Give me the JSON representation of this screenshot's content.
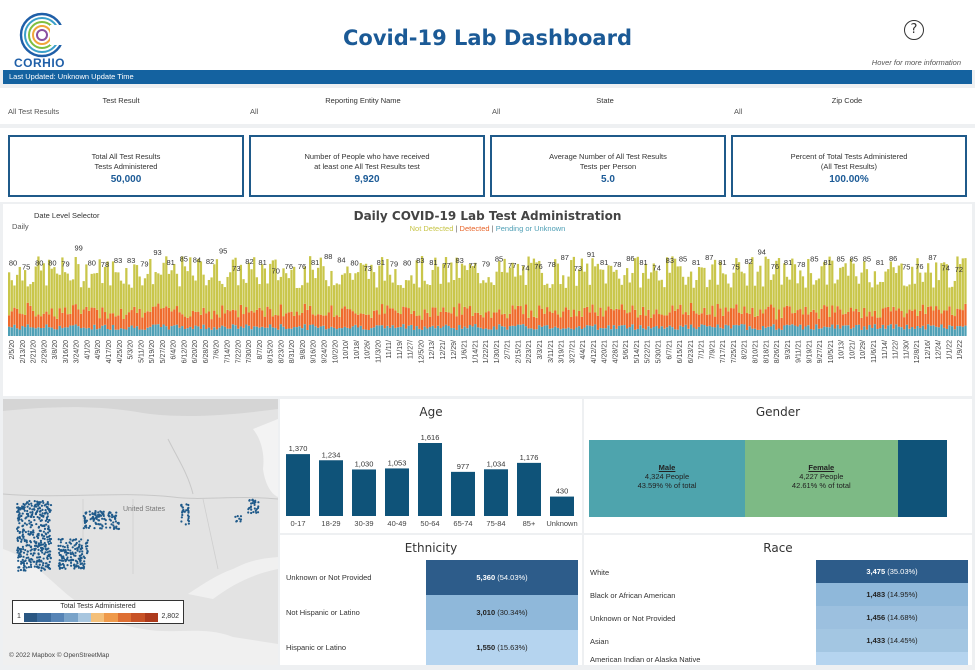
{
  "header": {
    "logo_text": "CORHIO",
    "title": "Covid-19 Lab Dashboard",
    "help_symbol": "?",
    "hover_hint": "Hover for more information",
    "last_updated": "Last Updated: Unknown Update Time"
  },
  "filters": [
    {
      "label": "Test Result",
      "value": "All Test Results"
    },
    {
      "label": "Reporting Entity Name",
      "value": "All"
    },
    {
      "label": "State",
      "value": "All"
    },
    {
      "label": "Zip Code",
      "value": "All"
    }
  ],
  "kpis": [
    {
      "line1": "Total All Test Results",
      "line2": "Tests Administered",
      "value": "50,000"
    },
    {
      "line1": "Number of People who have received",
      "line2": "at least one All Test Results test",
      "value": "9,920"
    },
    {
      "line1": "Average Number of All Test Results",
      "line2": "Tests per Person",
      "value": "5.0"
    },
    {
      "line1": "Percent of Total Tests Administered",
      "line2": "(All Test Results)",
      "value": "100.00%"
    }
  ],
  "timeline": {
    "date_selector_label": "Date Level Selector",
    "date_selector_value": "Daily",
    "title": "Daily COVID-19 Lab Test Administration",
    "legend": {
      "not_detected": "Not Detected",
      "detected": "Detected",
      "pending": "Pending or Unknown",
      "separator": "|"
    },
    "colors": {
      "not_detected": "#c9c64a",
      "detected": "#ef6a2b",
      "pending": "#4e9fb5"
    }
  },
  "chart_data": [
    {
      "type": "bar",
      "title": "Daily COVID-19 Lab Test Administration",
      "series": [
        {
          "name": "Not Detected"
        },
        {
          "name": "Detected"
        },
        {
          "name": "Pending or Unknown"
        }
      ],
      "x_tick_labels": [
        "2/5/20",
        "2/13/20",
        "2/21/20",
        "2/29/20",
        "3/8/20",
        "3/16/20",
        "3/24/20",
        "4/1/20",
        "4/9/20",
        "4/17/20",
        "4/25/20",
        "5/3/20",
        "5/11/20",
        "5/19/20",
        "5/27/20",
        "6/4/20",
        "6/12/20",
        "6/20/20",
        "6/28/20",
        "7/6/20",
        "7/14/20",
        "7/22/20",
        "7/30/20",
        "8/7/20",
        "8/15/20",
        "8/23/20",
        "8/31/20",
        "9/8/20",
        "9/16/20",
        "9/24/20",
        "10/2/20",
        "10/10/",
        "10/18/",
        "10/26/",
        "11/3/20",
        "11/11/",
        "11/19/",
        "11/27/",
        "12/5/20",
        "12/13/",
        "12/21/",
        "12/29/",
        "1/6/21",
        "1/14/21",
        "1/22/21",
        "1/30/21",
        "2/7/21",
        "2/15/21",
        "2/23/21",
        "3/3/21",
        "3/11/21",
        "3/19/21",
        "3/27/21",
        "4/4/21",
        "4/12/21",
        "4/20/21",
        "4/28/21",
        "5/6/21",
        "5/14/21",
        "5/22/21",
        "5/30/21",
        "6/7/21",
        "6/15/21",
        "6/23/21",
        "7/1/21",
        "7/9/21",
        "7/17/21",
        "7/25/21",
        "8/2/21",
        "8/10/21",
        "8/18/21",
        "8/26/21",
        "9/3/21",
        "9/11/21",
        "9/19/21",
        "9/27/21",
        "10/5/21",
        "10/13/",
        "10/21/",
        "10/29/",
        "11/6/21",
        "11/14/",
        "11/22/",
        "11/30/",
        "12/8/21",
        "12/16/",
        "12/24/",
        "1/1/22",
        "1/9/22"
      ],
      "data_labels": [
        80,
        75,
        80,
        80,
        79,
        99,
        80,
        78,
        83,
        83,
        79,
        93,
        81,
        85,
        84,
        82,
        95,
        73,
        82,
        81,
        70,
        76,
        76,
        81,
        88,
        84,
        80,
        73,
        81,
        79,
        80,
        83,
        81,
        77,
        83,
        77,
        79,
        85,
        77,
        74,
        76,
        78,
        87,
        73,
        91,
        81,
        78,
        86,
        81,
        74,
        83,
        85,
        81,
        87,
        81,
        75,
        82,
        94,
        76,
        81,
        78,
        85,
        81,
        85,
        85,
        85,
        81,
        86,
        75,
        76,
        87,
        74,
        72
      ]
    },
    {
      "type": "bar",
      "title": "Age",
      "categories": [
        "0-17",
        "18-29",
        "30-39",
        "40-49",
        "50-64",
        "65-74",
        "75-84",
        "85+",
        "Unknown"
      ],
      "values": [
        1370,
        1234,
        1030,
        1053,
        1616,
        977,
        1034,
        1176,
        430
      ],
      "value_labels": [
        "1,370",
        "1,234",
        "1,030",
        "1,053",
        "1,616",
        "977",
        "1,034",
        "1,176",
        "430"
      ]
    }
  ],
  "map": {
    "legend_title": "Total Tests Administered",
    "legend_min": "1",
    "legend_max": "2,802",
    "legend_colors": [
      "#2a5783",
      "#3d6d9f",
      "#5684b6",
      "#79a3c9",
      "#a8c6df",
      "#f4c07a",
      "#ef9a4b",
      "#de6f33",
      "#c85226",
      "#ad3a1c"
    ],
    "map_label": "United States",
    "attribution": "© 2022 Mapbox © OpenStreetMap",
    "dot_color": "#1f5a8a"
  },
  "age": {
    "title": "Age",
    "bar_color": "#0f5379"
  },
  "gender": {
    "title": "Gender",
    "segments": [
      {
        "name": "Male",
        "people": "4,324 People",
        "pct": "43.59% % of total",
        "share": 0.4359,
        "color": "#4ea4ad"
      },
      {
        "name": "Female",
        "people": "4,227 People",
        "pct": "42.61% % of total",
        "share": 0.4261,
        "color": "#7dba85"
      },
      {
        "name": "",
        "people": "",
        "pct": "",
        "share": 0.138,
        "color": "#0f5379"
      }
    ]
  },
  "ethnicity": {
    "title": "Ethnicity",
    "rows": [
      {
        "label": "Unknown or Not Provided",
        "count": "5,360",
        "pct": "(54.03%)",
        "color": "#2d5c8a"
      },
      {
        "label": "Not Hispanic or Latino",
        "count": "3,010",
        "pct": "(30.34%)",
        "color": "#8fb8da"
      },
      {
        "label": "Hispanic or Latino",
        "count": "1,550",
        "pct": "(15.63%)",
        "color": "#b5d4ef"
      }
    ]
  },
  "race": {
    "title": "Race",
    "rows": [
      {
        "label": "White",
        "count": "3,475",
        "pct": "(35.03%)",
        "color": "#2d5c8a"
      },
      {
        "label": "Black or African American",
        "count": "1,483",
        "pct": "(14.95%)",
        "color": "#8fb8da"
      },
      {
        "label": "Unknown or Not Provided",
        "count": "1,456",
        "pct": "(14.68%)",
        "color": "#9cc0df"
      },
      {
        "label": "Asian",
        "count": "1,433",
        "pct": "(14.45%)",
        "color": "#a3c6e2"
      },
      {
        "label": "American Indian or Alaska Native",
        "count": "",
        "pct": "",
        "color": "#b5d4ef"
      }
    ]
  }
}
